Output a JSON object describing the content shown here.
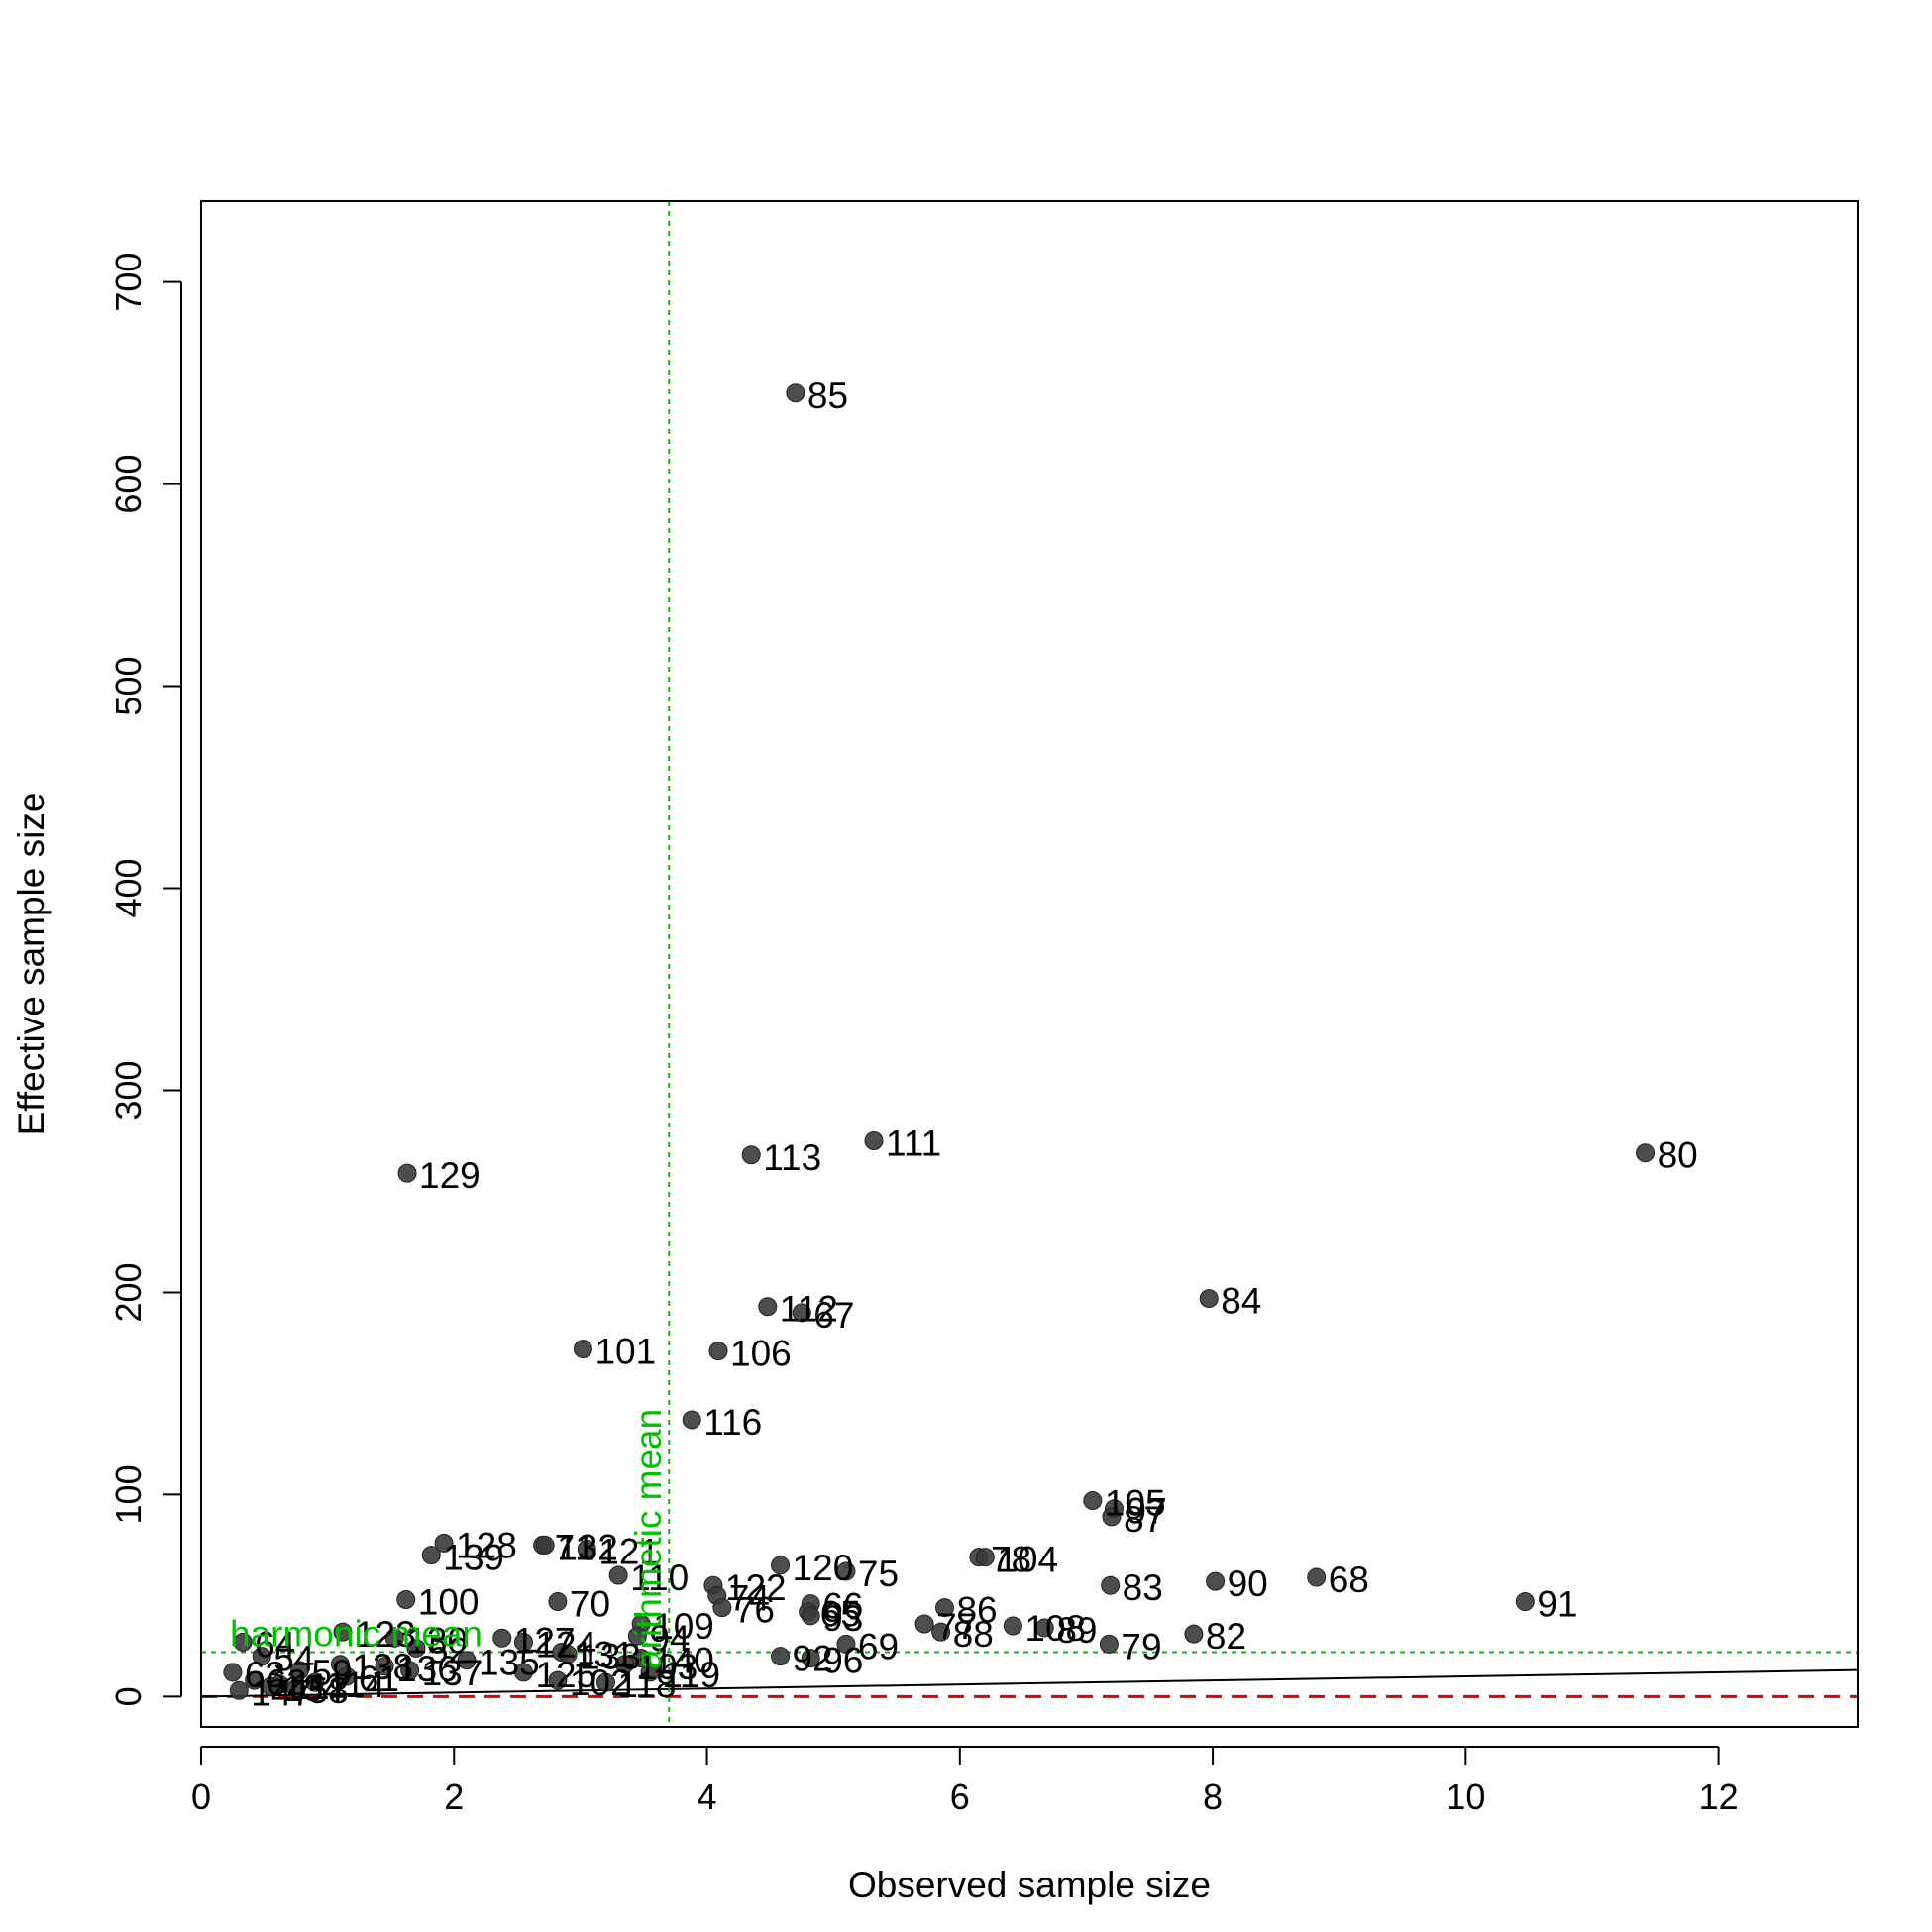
{
  "chart_data": {
    "type": "scatter",
    "title": "",
    "xlabel": "Observed sample size",
    "ylabel": "Effective sample size",
    "xlim": [
      0,
      13.1
    ],
    "ylim": [
      -15,
      740
    ],
    "x_ticks": [
      0,
      2,
      4,
      6,
      8,
      10,
      12
    ],
    "y_ticks": [
      0,
      100,
      200,
      300,
      400,
      500,
      600,
      700
    ],
    "grid": false,
    "legend": "none",
    "point_color": "#3a3a3a",
    "reference_lines": {
      "identity_line": {
        "slope": 1,
        "color": "#000000",
        "style": "solid"
      },
      "zero_line": {
        "y": 0,
        "color": "#e00000",
        "style": "dashed"
      },
      "arithmetic_mean": {
        "x": 3.7,
        "label": "arithmetic mean",
        "color": "#00c000",
        "style": "dotted"
      },
      "harmonic_mean": {
        "y": 22,
        "label": "harmonic mean",
        "color": "#00c000",
        "style": "dotted"
      }
    },
    "points": [
      {
        "label": "85",
        "x": 4.7,
        "y": 645
      },
      {
        "label": "129",
        "x": 1.63,
        "y": 259
      },
      {
        "label": "113",
        "x": 4.35,
        "y": 268
      },
      {
        "label": "111",
        "x": 5.32,
        "y": 275
      },
      {
        "label": "80",
        "x": 11.42,
        "y": 269
      },
      {
        "label": "84",
        "x": 7.97,
        "y": 197
      },
      {
        "label": "112",
        "x": 4.48,
        "y": 193
      },
      {
        "label": "67",
        "x": 4.75,
        "y": 190
      },
      {
        "label": "101",
        "x": 3.02,
        "y": 172
      },
      {
        "label": "106",
        "x": 4.09,
        "y": 171
      },
      {
        "label": "116",
        "x": 3.88,
        "y": 137
      },
      {
        "label": "105",
        "x": 7.05,
        "y": 97
      },
      {
        "label": "97",
        "x": 7.22,
        "y": 93
      },
      {
        "label": "87",
        "x": 7.2,
        "y": 89
      },
      {
        "label": "128",
        "x": 1.92,
        "y": 76
      },
      {
        "label": "139",
        "x": 1.82,
        "y": 70
      },
      {
        "label": "71",
        "x": 2.7,
        "y": 75
      },
      {
        "label": "132",
        "x": 2.72,
        "y": 75
      },
      {
        "label": "121",
        "x": 3.05,
        "y": 73
      },
      {
        "label": "78",
        "x": 6.15,
        "y": 69
      },
      {
        "label": "104",
        "x": 6.2,
        "y": 69
      },
      {
        "label": "120",
        "x": 4.58,
        "y": 65
      },
      {
        "label": "75",
        "x": 5.1,
        "y": 62
      },
      {
        "label": "110",
        "x": 3.3,
        "y": 60
      },
      {
        "label": "68",
        "x": 8.82,
        "y": 59
      },
      {
        "label": "90",
        "x": 8.02,
        "y": 57
      },
      {
        "label": "83",
        "x": 7.19,
        "y": 55
      },
      {
        "label": "122",
        "x": 4.05,
        "y": 55
      },
      {
        "label": "74",
        "x": 4.08,
        "y": 50
      },
      {
        "label": "100",
        "x": 1.62,
        "y": 48
      },
      {
        "label": "70",
        "x": 2.82,
        "y": 47
      },
      {
        "label": "91",
        "x": 10.47,
        "y": 47
      },
      {
        "label": "66",
        "x": 4.82,
        "y": 46
      },
      {
        "label": "76",
        "x": 4.12,
        "y": 44
      },
      {
        "label": "65",
        "x": 4.8,
        "y": 42
      },
      {
        "label": "86",
        "x": 5.88,
        "y": 44
      },
      {
        "label": "109",
        "x": 3.48,
        "y": 36
      },
      {
        "label": "93",
        "x": 4.82,
        "y": 40
      },
      {
        "label": "77",
        "x": 5.72,
        "y": 36
      },
      {
        "label": "108",
        "x": 6.42,
        "y": 35
      },
      {
        "label": "89",
        "x": 6.67,
        "y": 34
      },
      {
        "label": "88",
        "x": 5.85,
        "y": 32
      },
      {
        "label": "82",
        "x": 7.85,
        "y": 31
      },
      {
        "label": "123",
        "x": 1.12,
        "y": 32
      },
      {
        "label": "130",
        "x": 1.53,
        "y": 29
      },
      {
        "label": "127",
        "x": 2.38,
        "y": 29
      },
      {
        "label": "94",
        "x": 3.45,
        "y": 30
      },
      {
        "label": "64",
        "x": 0.33,
        "y": 27
      },
      {
        "label": "124",
        "x": 2.55,
        "y": 27
      },
      {
        "label": "69",
        "x": 5.1,
        "y": 26
      },
      {
        "label": "79",
        "x": 7.18,
        "y": 26
      },
      {
        "label": "52",
        "x": 1.7,
        "y": 24
      },
      {
        "label": "131",
        "x": 2.85,
        "y": 22
      },
      {
        "label": "133",
        "x": 2.9,
        "y": 21
      },
      {
        "label": "92",
        "x": 4.58,
        "y": 20
      },
      {
        "label": "96",
        "x": 4.82,
        "y": 19
      },
      {
        "label": "54",
        "x": 0.48,
        "y": 20
      },
      {
        "label": "140",
        "x": 3.48,
        "y": 19
      },
      {
        "label": "135",
        "x": 2.1,
        "y": 18
      },
      {
        "label": "138",
        "x": 1.1,
        "y": 16
      },
      {
        "label": "136",
        "x": 1.45,
        "y": 15
      },
      {
        "label": "103",
        "x": 3.35,
        "y": 16
      },
      {
        "label": "137",
        "x": 1.65,
        "y": 13
      },
      {
        "label": "125",
        "x": 2.55,
        "y": 12
      },
      {
        "label": "119",
        "x": 3.55,
        "y": 12
      },
      {
        "label": "59",
        "x": 0.78,
        "y": 13
      },
      {
        "label": "61",
        "x": 1.15,
        "y": 10
      },
      {
        "label": "63",
        "x": 0.25,
        "y": 12
      },
      {
        "label": "102",
        "x": 2.82,
        "y": 8
      },
      {
        "label": "118",
        "x": 3.2,
        "y": 7
      },
      {
        "label": "62",
        "x": 0.42,
        "y": 8
      },
      {
        "label": "117",
        "x": 0.62,
        "y": 6
      },
      {
        "label": "114",
        "x": 0.9,
        "y": 7
      },
      {
        "label": "134",
        "x": 0.55,
        "y": 5
      },
      {
        "label": "147",
        "x": 0.3,
        "y": 3
      },
      {
        "label": "58",
        "x": 0.75,
        "y": 4
      }
    ]
  }
}
